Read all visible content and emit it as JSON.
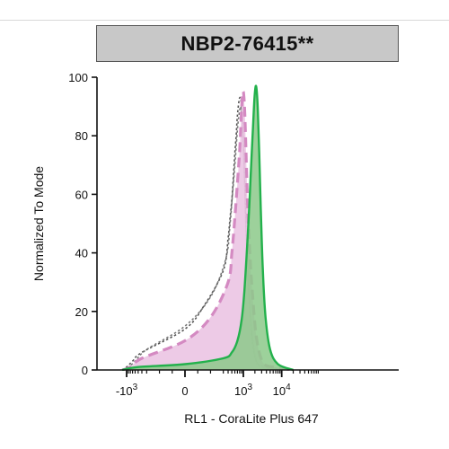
{
  "chart_data": {
    "type": "area",
    "title": "NBP2-76415**",
    "xlabel": "RL1 - CoraLite Plus 647",
    "ylabel": "Normalized To Mode",
    "ylim": [
      0,
      100
    ],
    "yticks": [
      0,
      20,
      40,
      60,
      80,
      100
    ],
    "x_scale": "biexponential",
    "xticks": [
      {
        "value": -1000,
        "base": "-10",
        "exp": "3"
      },
      {
        "value": 0,
        "base": "0",
        "exp": ""
      },
      {
        "value": 1000,
        "base": "10",
        "exp": "3"
      },
      {
        "value": 10000,
        "base": "10",
        "exp": "4"
      }
    ],
    "series": [
      {
        "style": "dotted-outline",
        "color": "#555555",
        "x": [
          -1300,
          -1000,
          -700,
          -400,
          0,
          150,
          300,
          400,
          450,
          500,
          550,
          600,
          650,
          700,
          800,
          900,
          1000,
          1100,
          1200,
          1400,
          1600,
          1900,
          2400,
          4000,
          20000
        ],
        "y": [
          0,
          1,
          3,
          6,
          14,
          22,
          34,
          45,
          52,
          58,
          66,
          74,
          80,
          87,
          93,
          90,
          78,
          62,
          45,
          26,
          14,
          6,
          2,
          1,
          0
        ]
      },
      {
        "style": "dotted-outline",
        "color": "#777777",
        "x": [
          -1200,
          -900,
          -600,
          -300,
          0,
          200,
          350,
          450,
          520,
          600,
          680,
          750,
          850,
          950,
          1050,
          1150,
          1300,
          1500,
          1800,
          2200,
          3000,
          20000
        ],
        "y": [
          0,
          1,
          3,
          7,
          15,
          25,
          38,
          50,
          60,
          70,
          80,
          86,
          90,
          84,
          70,
          52,
          35,
          20,
          9,
          3,
          1,
          0
        ]
      },
      {
        "style": "pink-filled-dashed",
        "color": "#d48ac2",
        "fill": "#ebc4e3",
        "x": [
          -1300,
          -800,
          -400,
          0,
          200,
          400,
          500,
          600,
          700,
          800,
          850,
          900,
          950,
          1000,
          1050,
          1100,
          1200,
          1300,
          1450,
          1600,
          1800,
          2100,
          2600,
          3500,
          6000,
          20000
        ],
        "y": [
          0,
          1,
          4,
          10,
          18,
          30,
          40,
          52,
          64,
          75,
          82,
          89,
          94,
          95,
          92,
          86,
          70,
          55,
          42,
          32,
          23,
          13,
          6,
          2,
          1,
          0
        ]
      },
      {
        "style": "green-filled",
        "color": "#23b14c",
        "fill": "#8cc98a",
        "x": [
          -1300,
          -500,
          0,
          300,
          500,
          700,
          900,
          1050,
          1200,
          1350,
          1500,
          1650,
          1800,
          1950,
          2100,
          2250,
          2400,
          2600,
          2850,
          3200,
          3800,
          5000,
          8000,
          20000
        ],
        "y": [
          0,
          1,
          2,
          4,
          6,
          10,
          17,
          26,
          38,
          50,
          62,
          74,
          84,
          93,
          97,
          95,
          88,
          74,
          55,
          35,
          18,
          7,
          2,
          0
        ]
      }
    ]
  }
}
